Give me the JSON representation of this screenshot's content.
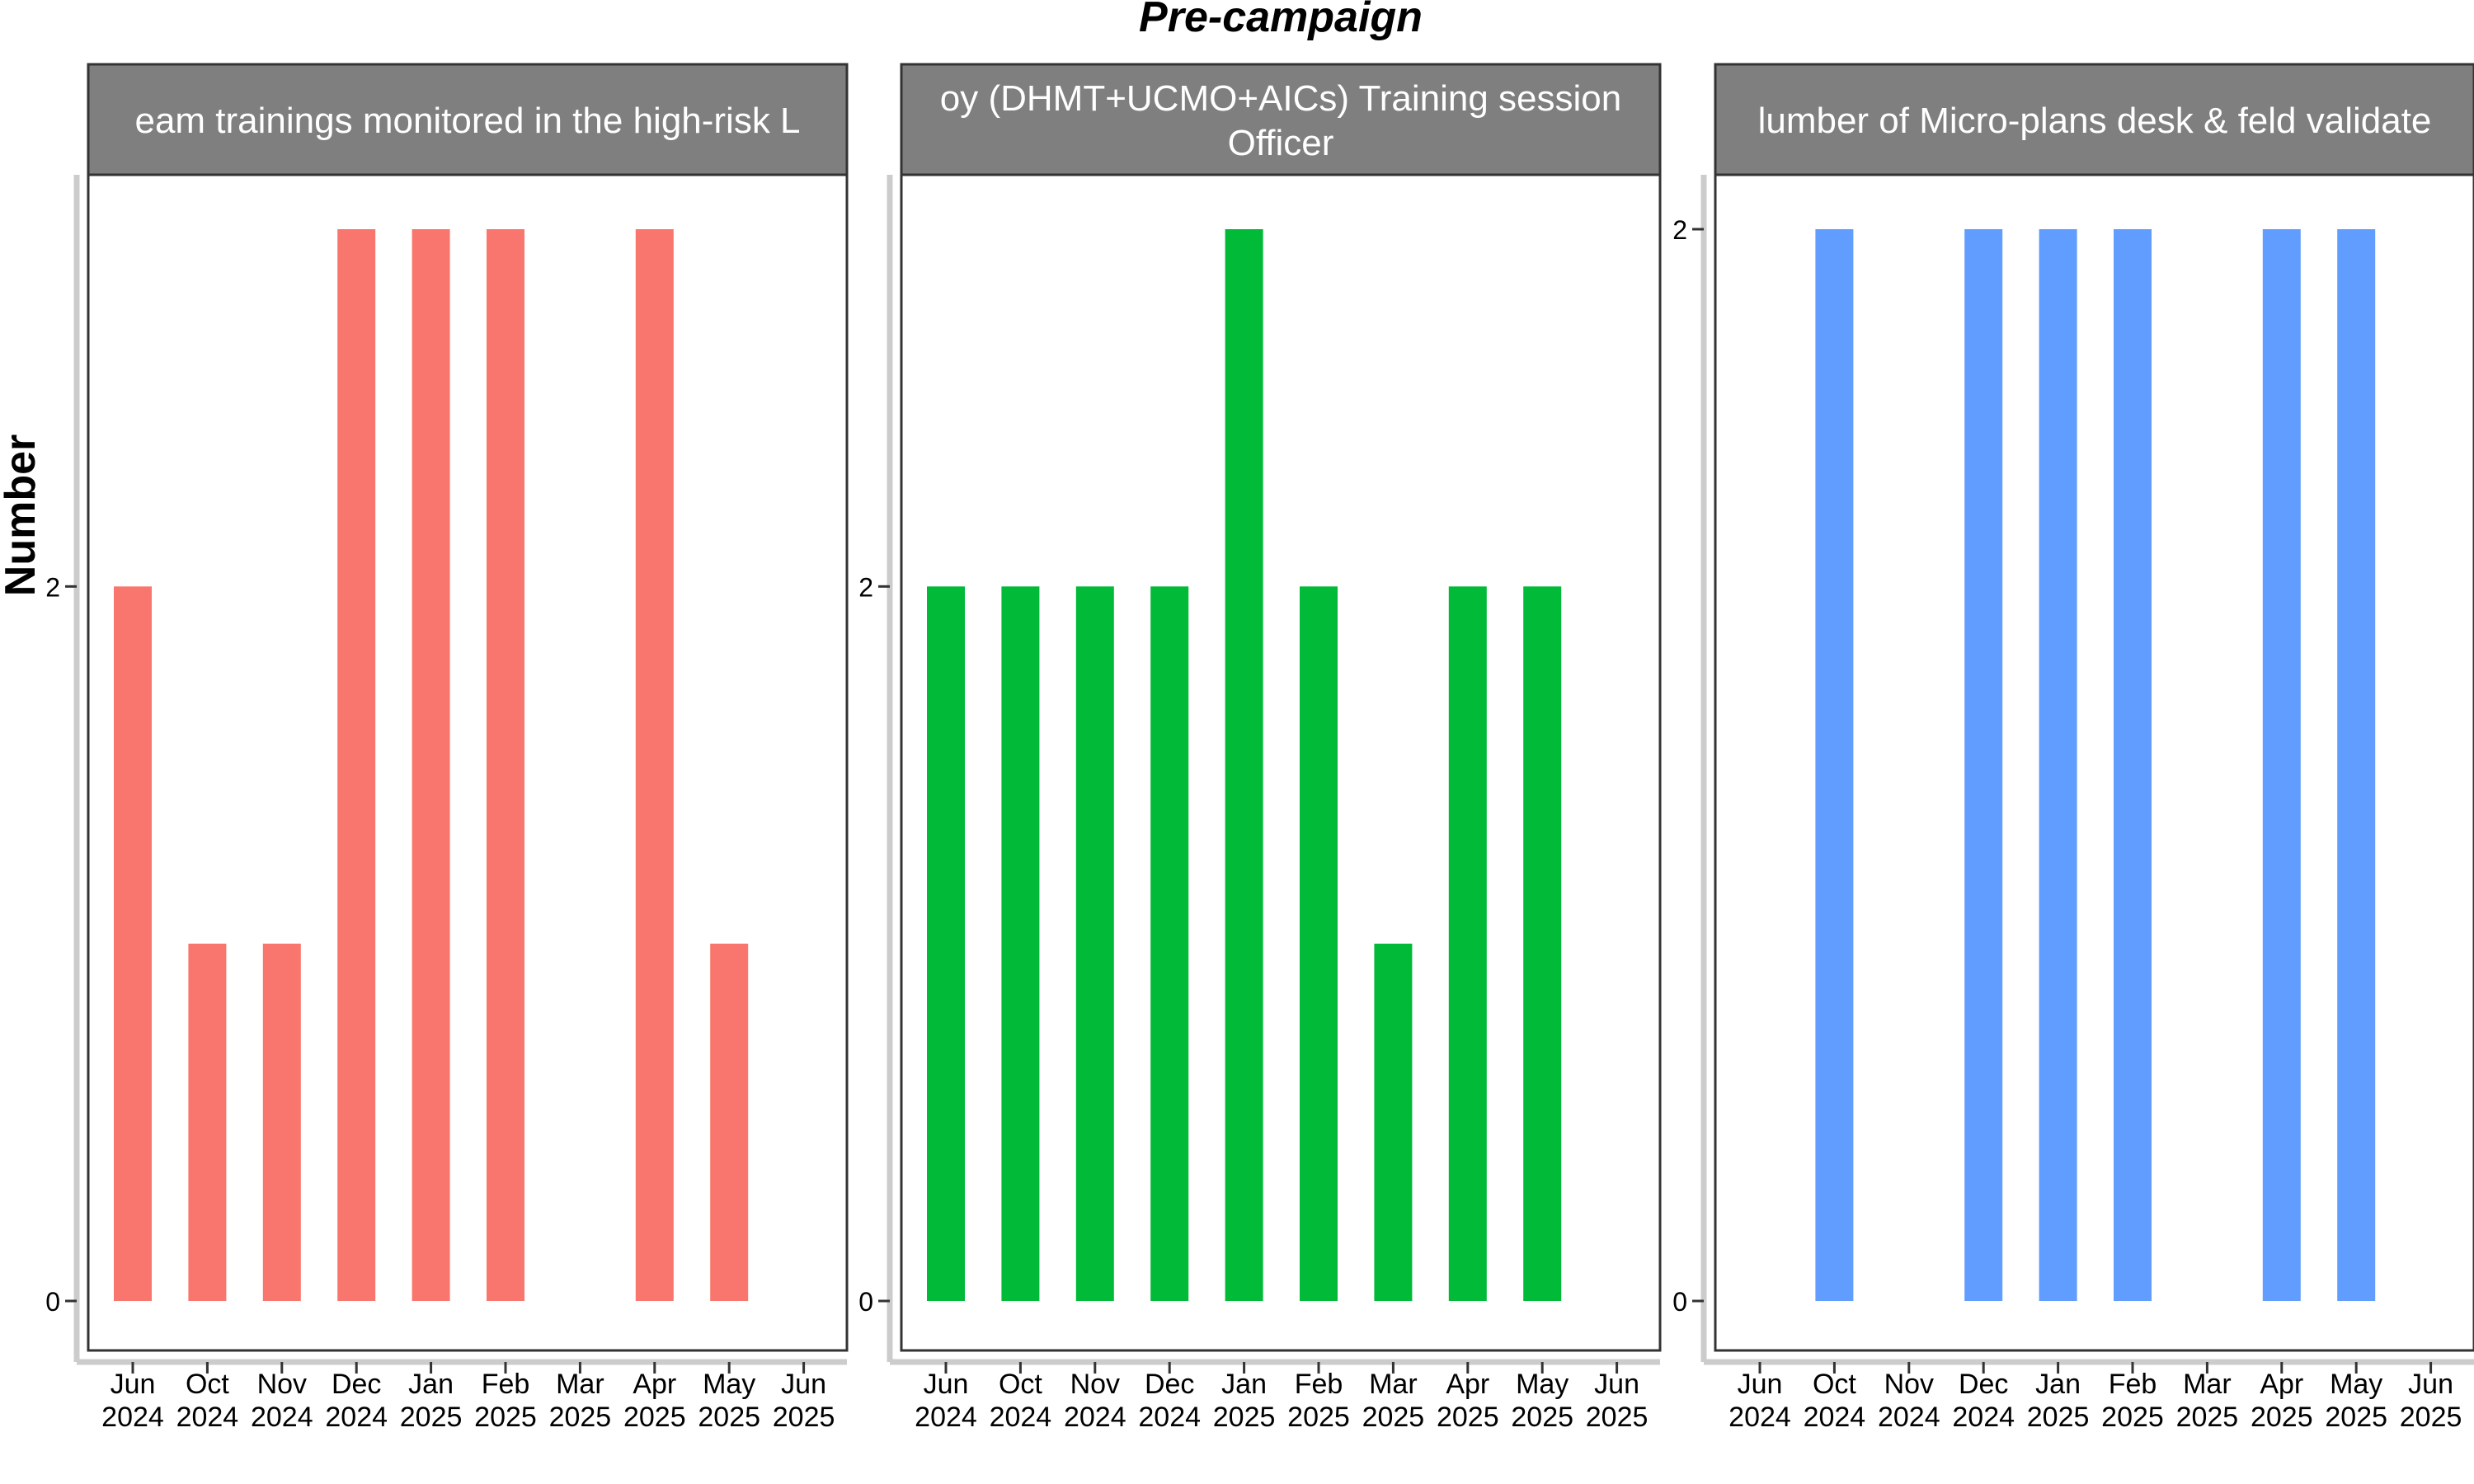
{
  "figure": {
    "title": "Pre-campaign",
    "ylabel": "Number"
  },
  "chart_data": [
    {
      "type": "bar",
      "panel_title": [
        "eam trainings monitored in the high-risk L"
      ],
      "color": "#F8766D",
      "categories": [
        "Jun 2024",
        "Oct 2024",
        "Nov 2024",
        "Dec 2024",
        "Jan 2025",
        "Feb 2025",
        "Mar 2025",
        "Apr 2025",
        "May 2025",
        "Jun 2025"
      ],
      "values": [
        2,
        1,
        1,
        3,
        3,
        3,
        null,
        3,
        1,
        null
      ],
      "yticks": [
        0,
        2
      ],
      "ylim": [
        -0.1,
        3.1
      ]
    },
    {
      "type": "bar",
      "panel_title": [
        "oy (DHMT+UCMO+AICs) Training session",
        "Officer"
      ],
      "color": "#00BA38",
      "categories": [
        "Jun 2024",
        "Oct 2024",
        "Nov 2024",
        "Dec 2024",
        "Jan 2025",
        "Feb 2025",
        "Mar 2025",
        "Apr 2025",
        "May 2025",
        "Jun 2025"
      ],
      "values": [
        2,
        2,
        2,
        2,
        3,
        2,
        1,
        2,
        2,
        null
      ],
      "yticks": [
        0,
        2
      ],
      "ylim": [
        -0.1,
        3.1
      ]
    },
    {
      "type": "bar",
      "panel_title": [
        "lumber of Micro-plans desk & feld validate"
      ],
      "color": "#619CFF",
      "categories": [
        "Jun 2024",
        "Oct 2024",
        "Nov 2024",
        "Dec 2024",
        "Jan 2025",
        "Feb 2025",
        "Mar 2025",
        "Apr 2025",
        "May 2025",
        "Jun 2025"
      ],
      "values": [
        null,
        2,
        null,
        2,
        2,
        2,
        null,
        2,
        2,
        null
      ],
      "yticks": [
        0,
        2
      ],
      "ylim": [
        -0.1,
        2.1
      ]
    }
  ]
}
